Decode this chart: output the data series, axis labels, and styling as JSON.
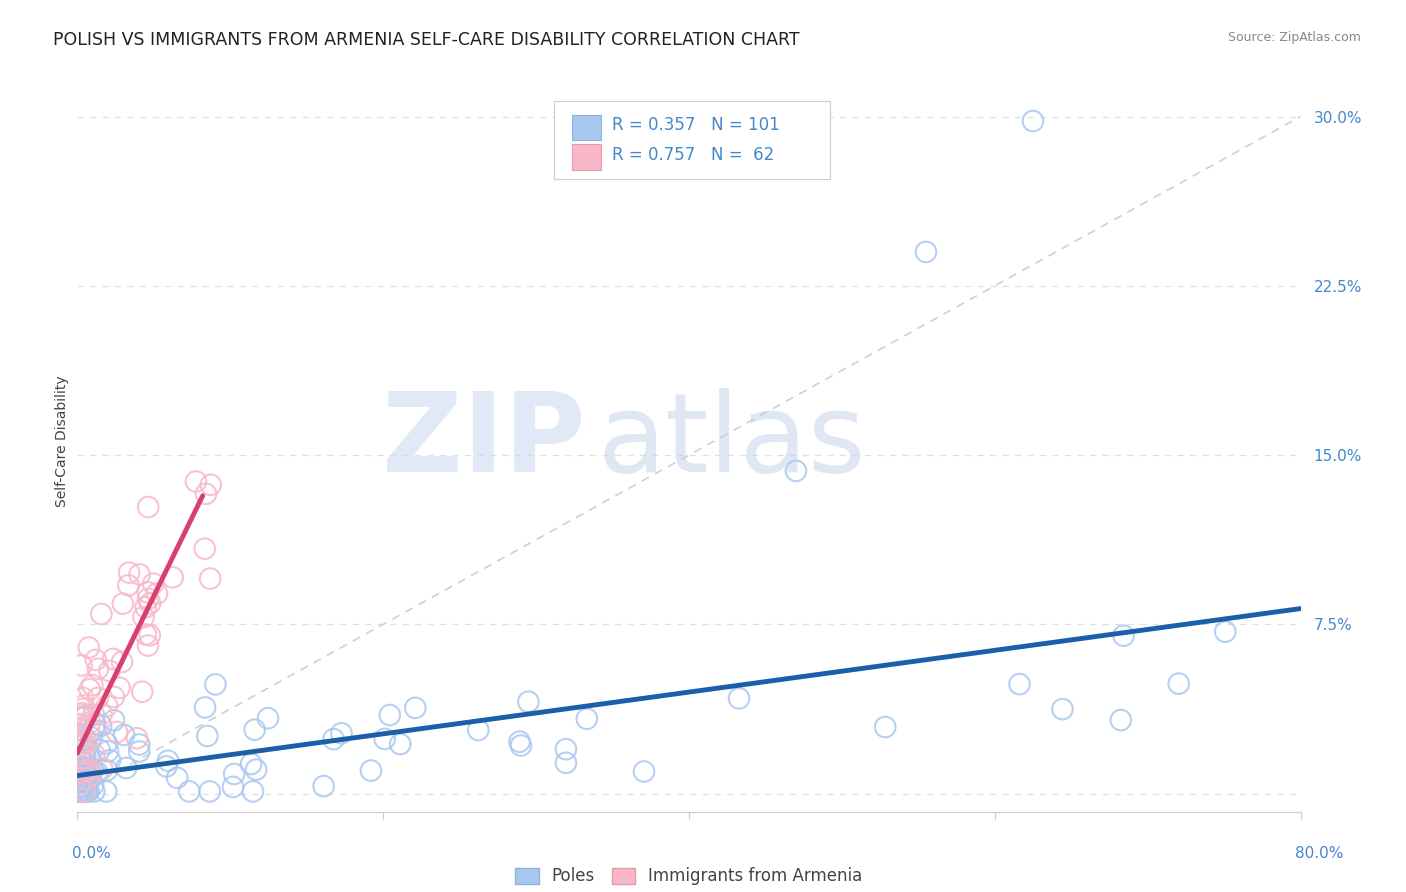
{
  "title": "POLISH VS IMMIGRANTS FROM ARMENIA SELF-CARE DISABILITY CORRELATION CHART",
  "source": "Source: ZipAtlas.com",
  "ylabel": "Self-Care Disability",
  "xlim": [
    0.0,
    0.8
  ],
  "ylim": [
    -0.008,
    0.32
  ],
  "yticks": [
    0.0,
    0.075,
    0.15,
    0.225,
    0.3
  ],
  "ytick_labels": [
    "",
    "7.5%",
    "15.0%",
    "22.5%",
    "30.0%"
  ],
  "poles_color": "#a8c8f0",
  "armenia_color": "#f8b8c8",
  "poles_edge_color": "#8ab4e0",
  "armenia_edge_color": "#e898b0",
  "poles_line_color": "#1a5fa8",
  "armenia_line_color": "#d84070",
  "ref_line_color": "#d0d0d0",
  "tick_label_color": "#4488cc",
  "background_color": "#ffffff",
  "grid_color": "#e0e0e0",
  "title_color": "#222222",
  "axis_label_color": "#444444",
  "source_color": "#888888",
  "title_fontsize": 12.5,
  "label_fontsize": 10,
  "tick_fontsize": 11,
  "legend_fontsize": 12,
  "watermark_zip_color": "#c8d8f0",
  "watermark_atlas_color": "#b0c8e8"
}
